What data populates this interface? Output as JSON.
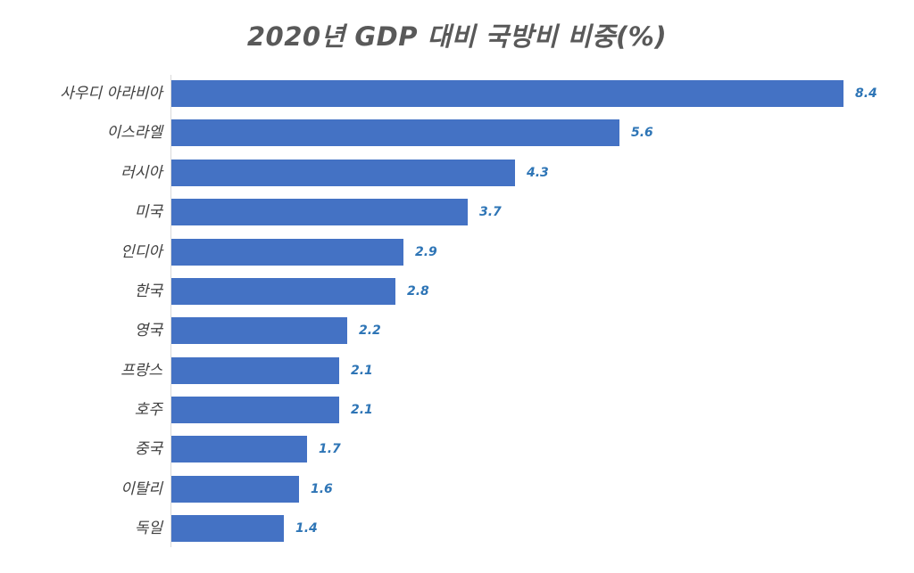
{
  "chart_data": {
    "type": "bar",
    "orientation": "horizontal",
    "title": "2020년 GDP 대비 국방비 비중(%)",
    "xlabel": "",
    "ylabel": "",
    "categories": [
      "사우디 아라비아",
      "이스라엘",
      "러시아",
      "미국",
      "인디아",
      "한국",
      "영국",
      "프랑스",
      "호주",
      "중국",
      "이탈리",
      "독일"
    ],
    "values": [
      8.4,
      5.6,
      4.3,
      3.7,
      2.9,
      2.8,
      2.2,
      2.1,
      2.1,
      1.7,
      1.6,
      1.4
    ],
    "value_labels": [
      "8.4",
      "5.6",
      "4.3",
      "3.7",
      "2.9",
      "2.8",
      "2.2",
      "2.1",
      "2.1",
      "1.7",
      "1.6",
      "1.4"
    ],
    "xlim": [
      0,
      8.4
    ],
    "grid": false,
    "legend": "none",
    "data_labels": true,
    "colors": {
      "bar": "#4472c4",
      "data_label": "#2e75b6",
      "title": "#595959",
      "axis": "#d9d9d9"
    }
  }
}
